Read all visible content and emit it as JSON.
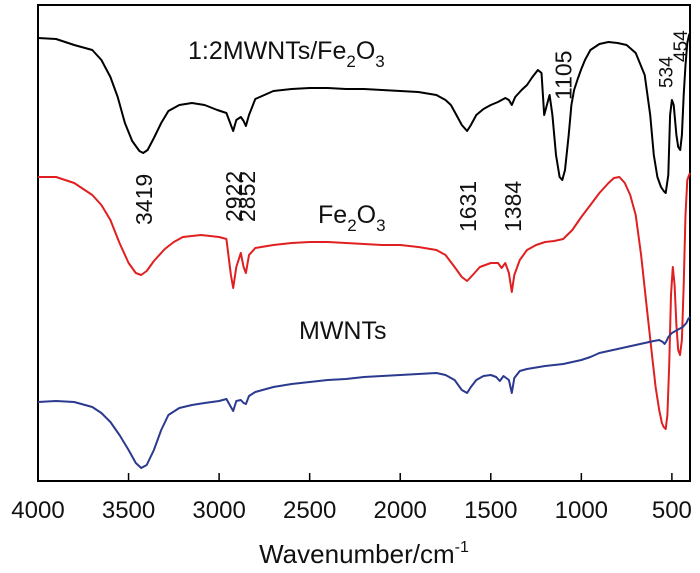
{
  "chart_data": {
    "type": "line",
    "title": "",
    "xlabel": "Wavenumber/cm",
    "xlabel_superscript": "-1",
    "ylabel": "",
    "x_reversed": true,
    "xlim": [
      4000,
      400
    ],
    "x_ticks": [
      4000,
      3500,
      3000,
      2500,
      2000,
      1500,
      1000,
      500
    ],
    "x_tick_labels": [
      "4000",
      "3500",
      "3000",
      "2500",
      "2000",
      "1500",
      "1000",
      "500"
    ],
    "y_ticks_shown": false,
    "grid": false,
    "series": [
      {
        "name": "1:2MWNTs/Fe2O3",
        "label_main": "1:2MWNTs/Fe",
        "label_sub1": "2",
        "label_mid": "O",
        "label_sub2": "3",
        "color": "#000000",
        "points": [
          [
            4000,
            33
          ],
          [
            3900,
            34
          ],
          [
            3800,
            40
          ],
          [
            3700,
            45
          ],
          [
            3650,
            55
          ],
          [
            3600,
            72
          ],
          [
            3560,
            92
          ],
          [
            3520,
            118
          ],
          [
            3480,
            136
          ],
          [
            3440,
            146
          ],
          [
            3419,
            148
          ],
          [
            3395,
            145
          ],
          [
            3360,
            133
          ],
          [
            3320,
            118
          ],
          [
            3280,
            106
          ],
          [
            3220,
            100
          ],
          [
            3150,
            98
          ],
          [
            3080,
            100
          ],
          [
            3010,
            105
          ],
          [
            2960,
            108
          ],
          [
            2935,
            120
          ],
          [
            2922,
            126
          ],
          [
            2905,
            115
          ],
          [
            2880,
            112
          ],
          [
            2865,
            116
          ],
          [
            2852,
            121
          ],
          [
            2835,
            110
          ],
          [
            2800,
            94
          ],
          [
            2700,
            86
          ],
          [
            2600,
            84
          ],
          [
            2500,
            83
          ],
          [
            2400,
            83
          ],
          [
            2300,
            84
          ],
          [
            2200,
            84
          ],
          [
            2100,
            85
          ],
          [
            2000,
            86
          ],
          [
            1900,
            87
          ],
          [
            1800,
            90
          ],
          [
            1750,
            95
          ],
          [
            1720,
            100
          ],
          [
            1690,
            110
          ],
          [
            1660,
            120
          ],
          [
            1631,
            126
          ],
          [
            1610,
            120
          ],
          [
            1580,
            110
          ],
          [
            1540,
            104
          ],
          [
            1500,
            100
          ],
          [
            1460,
            97
          ],
          [
            1420,
            93
          ],
          [
            1400,
            95
          ],
          [
            1384,
            100
          ],
          [
            1365,
            92
          ],
          [
            1330,
            85
          ],
          [
            1300,
            80
          ],
          [
            1270,
            72
          ],
          [
            1240,
            65
          ],
          [
            1220,
            68
          ],
          [
            1205,
            110
          ],
          [
            1190,
            100
          ],
          [
            1175,
            90
          ],
          [
            1160,
            110
          ],
          [
            1140,
            150
          ],
          [
            1120,
            172
          ],
          [
            1105,
            175
          ],
          [
            1090,
            165
          ],
          [
            1070,
            130
          ],
          [
            1055,
            100
          ],
          [
            1040,
            85
          ],
          [
            1020,
            74
          ],
          [
            1000,
            64
          ],
          [
            980,
            55
          ],
          [
            950,
            45
          ],
          [
            900,
            39
          ],
          [
            850,
            37
          ],
          [
            800,
            38
          ],
          [
            750,
            40
          ],
          [
            700,
            48
          ],
          [
            650,
            70
          ],
          [
            620,
            110
          ],
          [
            600,
            150
          ],
          [
            580,
            172
          ],
          [
            560,
            182
          ],
          [
            545,
            186
          ],
          [
            534,
            188
          ],
          [
            520,
            170
          ],
          [
            510,
            110
          ],
          [
            500,
            95
          ],
          [
            490,
            100
          ],
          [
            475,
            130
          ],
          [
            465,
            142
          ],
          [
            454,
            145
          ],
          [
            445,
            130
          ],
          [
            435,
            90
          ],
          [
            425,
            60
          ],
          [
            415,
            38
          ],
          [
            405,
            30
          ],
          [
            400,
            28
          ]
        ]
      },
      {
        "name": "Fe2O3",
        "label_main": "Fe",
        "label_sub1": "2",
        "label_mid": "O",
        "label_sub2": "3",
        "color": "#e02020",
        "points": [
          [
            4000,
            172
          ],
          [
            3900,
            172
          ],
          [
            3800,
            178
          ],
          [
            3700,
            190
          ],
          [
            3650,
            200
          ],
          [
            3600,
            215
          ],
          [
            3550,
            238
          ],
          [
            3500,
            258
          ],
          [
            3460,
            268
          ],
          [
            3430,
            270
          ],
          [
            3400,
            266
          ],
          [
            3360,
            256
          ],
          [
            3300,
            244
          ],
          [
            3250,
            237
          ],
          [
            3200,
            232
          ],
          [
            3100,
            230
          ],
          [
            3000,
            232
          ],
          [
            2960,
            234
          ],
          [
            2935,
            270
          ],
          [
            2922,
            283
          ],
          [
            2905,
            262
          ],
          [
            2880,
            248
          ],
          [
            2865,
            262
          ],
          [
            2852,
            268
          ],
          [
            2835,
            250
          ],
          [
            2800,
            243
          ],
          [
            2700,
            240
          ],
          [
            2600,
            238
          ],
          [
            2500,
            237
          ],
          [
            2400,
            237
          ],
          [
            2300,
            238
          ],
          [
            2200,
            239
          ],
          [
            2100,
            240
          ],
          [
            2000,
            240
          ],
          [
            1900,
            242
          ],
          [
            1800,
            245
          ],
          [
            1750,
            250
          ],
          [
            1700,
            262
          ],
          [
            1660,
            272
          ],
          [
            1631,
            276
          ],
          [
            1600,
            270
          ],
          [
            1560,
            262
          ],
          [
            1500,
            258
          ],
          [
            1460,
            258
          ],
          [
            1440,
            263
          ],
          [
            1420,
            258
          ],
          [
            1400,
            268
          ],
          [
            1384,
            287
          ],
          [
            1370,
            270
          ],
          [
            1340,
            255
          ],
          [
            1300,
            245
          ],
          [
            1250,
            240
          ],
          [
            1200,
            237
          ],
          [
            1150,
            236
          ],
          [
            1100,
            234
          ],
          [
            1050,
            225
          ],
          [
            1000,
            212
          ],
          [
            950,
            200
          ],
          [
            900,
            188
          ],
          [
            850,
            178
          ],
          [
            820,
            173
          ],
          [
            790,
            172
          ],
          [
            760,
            178
          ],
          [
            730,
            190
          ],
          [
            700,
            210
          ],
          [
            670,
            250
          ],
          [
            640,
            300
          ],
          [
            610,
            350
          ],
          [
            590,
            382
          ],
          [
            570,
            405
          ],
          [
            555,
            418
          ],
          [
            545,
            422
          ],
          [
            534,
            424
          ],
          [
            525,
            410
          ],
          [
            515,
            360
          ],
          [
            505,
            290
          ],
          [
            495,
            262
          ],
          [
            485,
            280
          ],
          [
            475,
            320
          ],
          [
            465,
            345
          ],
          [
            455,
            350
          ],
          [
            445,
            335
          ],
          [
            435,
            280
          ],
          [
            425,
            210
          ],
          [
            415,
            175
          ],
          [
            405,
            170
          ],
          [
            400,
            168
          ]
        ]
      },
      {
        "name": "MWNTs",
        "label_main": "MWNTs",
        "color": "#2b3a8f",
        "points": [
          [
            4000,
            397
          ],
          [
            3900,
            396
          ],
          [
            3800,
            397
          ],
          [
            3700,
            402
          ],
          [
            3650,
            408
          ],
          [
            3600,
            417
          ],
          [
            3550,
            430
          ],
          [
            3500,
            445
          ],
          [
            3460,
            458
          ],
          [
            3430,
            463
          ],
          [
            3400,
            460
          ],
          [
            3360,
            445
          ],
          [
            3320,
            425
          ],
          [
            3280,
            410
          ],
          [
            3220,
            403
          ],
          [
            3150,
            400
          ],
          [
            3080,
            398
          ],
          [
            3000,
            396
          ],
          [
            2960,
            394
          ],
          [
            2935,
            402
          ],
          [
            2922,
            406
          ],
          [
            2905,
            396
          ],
          [
            2880,
            395
          ],
          [
            2865,
            398
          ],
          [
            2852,
            399
          ],
          [
            2835,
            391
          ],
          [
            2800,
            387
          ],
          [
            2700,
            382
          ],
          [
            2600,
            379
          ],
          [
            2500,
            377
          ],
          [
            2400,
            375
          ],
          [
            2300,
            374
          ],
          [
            2200,
            372
          ],
          [
            2100,
            371
          ],
          [
            2000,
            370
          ],
          [
            1900,
            369
          ],
          [
            1800,
            368
          ],
          [
            1750,
            370
          ],
          [
            1700,
            375
          ],
          [
            1660,
            385
          ],
          [
            1631,
            388
          ],
          [
            1610,
            382
          ],
          [
            1580,
            375
          ],
          [
            1540,
            371
          ],
          [
            1500,
            370
          ],
          [
            1470,
            372
          ],
          [
            1450,
            376
          ],
          [
            1430,
            371
          ],
          [
            1400,
            375
          ],
          [
            1384,
            388
          ],
          [
            1370,
            373
          ],
          [
            1340,
            366
          ],
          [
            1300,
            364
          ],
          [
            1200,
            361
          ],
          [
            1100,
            359
          ],
          [
            1050,
            357
          ],
          [
            1000,
            355
          ],
          [
            950,
            352
          ],
          [
            900,
            348
          ],
          [
            850,
            346
          ],
          [
            800,
            344
          ],
          [
            750,
            342
          ],
          [
            700,
            340
          ],
          [
            650,
            338
          ],
          [
            600,
            336
          ],
          [
            570,
            335
          ],
          [
            550,
            337
          ],
          [
            540,
            339
          ],
          [
            530,
            336
          ],
          [
            520,
            332
          ],
          [
            510,
            330
          ],
          [
            500,
            328
          ],
          [
            480,
            326
          ],
          [
            460,
            324
          ],
          [
            440,
            322
          ],
          [
            420,
            318
          ],
          [
            410,
            314
          ],
          [
            400,
            312
          ]
        ]
      }
    ],
    "peak_labels": [
      {
        "text": "3419",
        "x": 3419,
        "size": "large"
      },
      {
        "text": "2922",
        "x": 2922,
        "size": "large"
      },
      {
        "text": "2852",
        "x": 2852,
        "size": "large"
      },
      {
        "text": "1631",
        "x": 1631,
        "size": "large"
      },
      {
        "text": "1384",
        "x": 1384,
        "size": "large"
      },
      {
        "text": "1105",
        "x": 1105,
        "size": "large"
      },
      {
        "text": "534",
        "x": 534,
        "size": "small"
      },
      {
        "text": "454",
        "x": 454,
        "size": "small"
      }
    ]
  }
}
